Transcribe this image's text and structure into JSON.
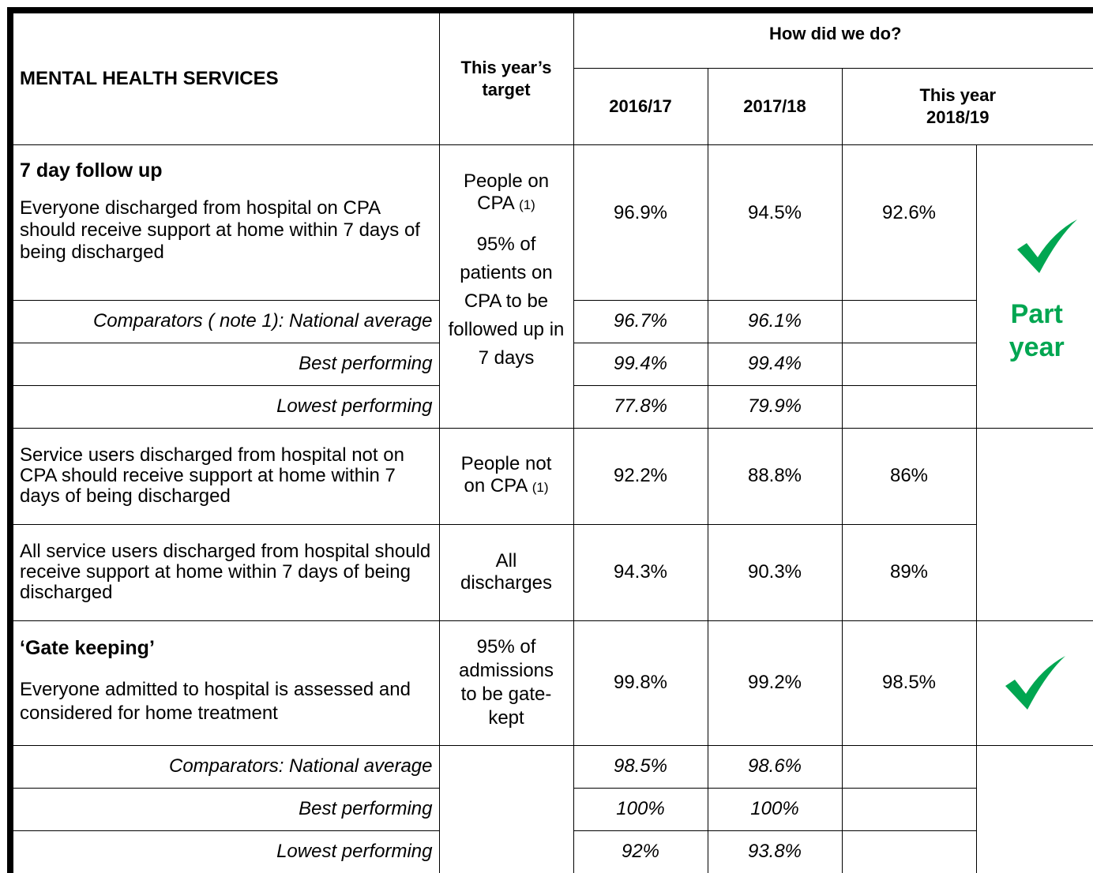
{
  "header": {
    "title": "MENTAL HEALTH SERVICES",
    "target": "This year’s target",
    "how": "How did we do?",
    "years": [
      "2016/17",
      "2017/18"
    ],
    "this_year": "This year 2018/19"
  },
  "follow_up": {
    "title": "7 day follow up",
    "description": "Everyone discharged from hospital on CPA should receive support at home within 7 days of being discharged",
    "target": {
      "text": "People on CPA",
      "note": "(1)",
      "detail": "95% of patients on CPA to be followed up in 7 days"
    },
    "values": [
      "96.9%",
      "94.5%",
      "92.6%"
    ],
    "status": "Part year",
    "comparators": [
      {
        "label": "Comparators ( note 1): National average",
        "values": [
          "96.7%",
          "96.1%"
        ]
      },
      {
        "label": "Best performing",
        "values": [
          "99.4%",
          "99.4%"
        ]
      },
      {
        "label": "Lowest performing",
        "values": [
          "77.8%",
          "79.9%"
        ]
      }
    ]
  },
  "not_on_cpa": {
    "description": "Service users discharged from hospital not on CPA should receive support at home within 7 days of being discharged",
    "target": {
      "text": "People not on CPA",
      "note": "(1)"
    },
    "values": [
      "92.2%",
      "88.8%",
      "86%"
    ]
  },
  "all_discharges": {
    "description": "All service users discharged from hospital should receive support at home within 7 days of being discharged",
    "target": "All discharges",
    "values": [
      "94.3%",
      "90.3%",
      "89%"
    ]
  },
  "gate_keeping": {
    "title": "‘Gate keeping’",
    "description": "Everyone admitted to hospital is assessed and considered for home treatment",
    "target": "95% of admissions to be gate-kept",
    "values": [
      "99.8%",
      "99.2%",
      "98.5%"
    ],
    "comparators": [
      {
        "label": "Comparators: National average",
        "values": [
          "98.5%",
          "98.6%"
        ]
      },
      {
        "label": "Best performing",
        "values": [
          "100%",
          "100%"
        ]
      },
      {
        "label": "Lowest performing",
        "values": [
          "92%",
          "93.8%"
        ]
      }
    ]
  }
}
